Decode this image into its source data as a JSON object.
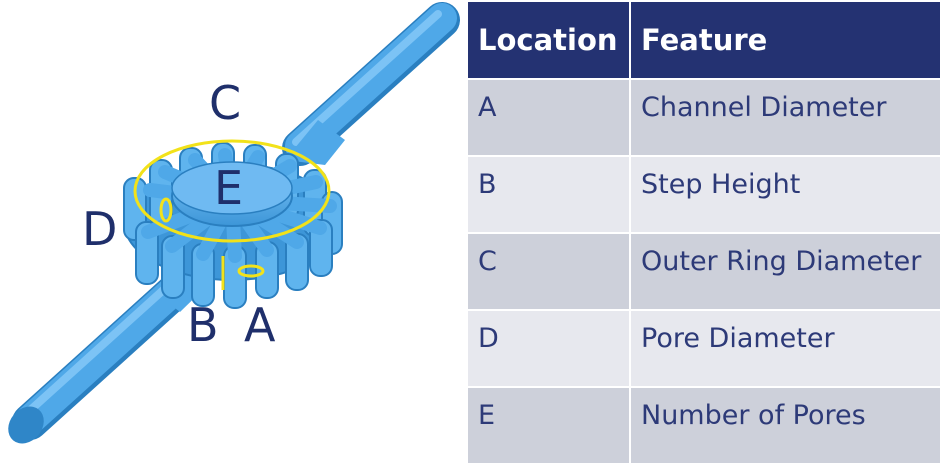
{
  "callouts": {
    "a": "A",
    "b": "B",
    "c": "C",
    "d": "D",
    "e": "E"
  },
  "colors": {
    "channel_fill": "#4fa8e8",
    "channel_shade": "#2f86c8",
    "highlight": "#f2e21a",
    "label_text": "#1f2f6b",
    "header_bg": "#243272",
    "row_dark": "#cdd0da",
    "row_light": "#e7e8ee"
  },
  "table": {
    "headers": [
      "Location",
      "Feature"
    ],
    "rows": [
      {
        "location": "A",
        "feature": "Channel Diameter"
      },
      {
        "location": "B",
        "feature": "Step Height"
      },
      {
        "location": "C",
        "feature": "Outer Ring Diameter"
      },
      {
        "location": "D",
        "feature": "Pore Diameter"
      },
      {
        "location": "E",
        "feature": "Number of Pores"
      }
    ]
  }
}
